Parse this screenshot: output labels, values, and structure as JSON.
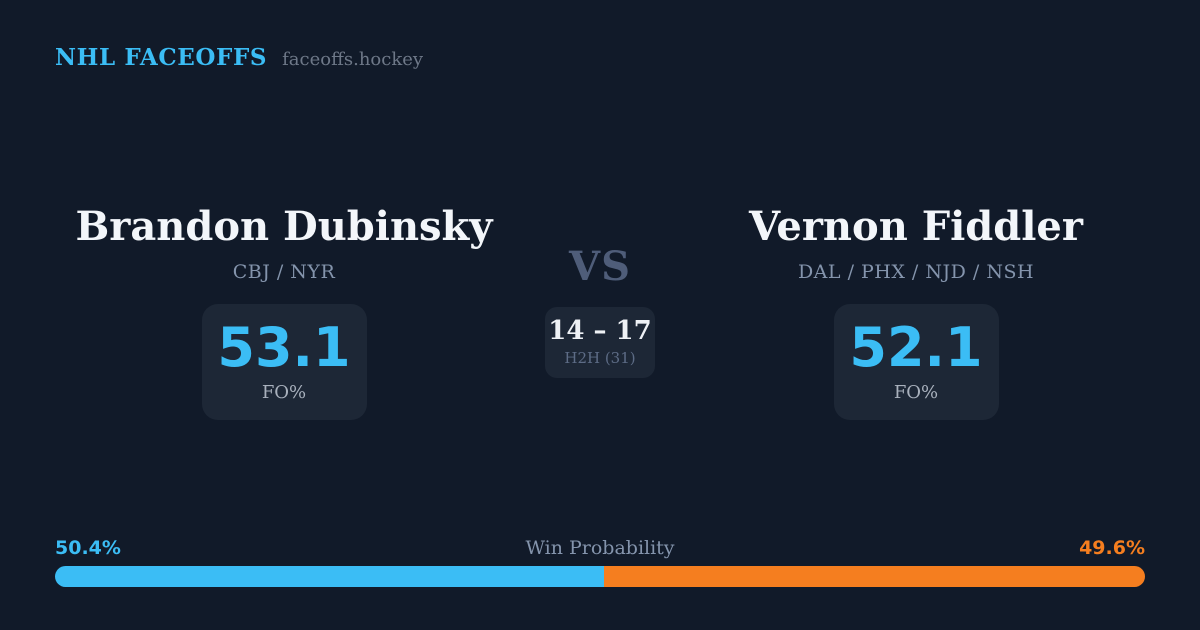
{
  "header": {
    "brand": "NHL FACEOFFS",
    "domain": "faceoffs.hockey"
  },
  "matchup": {
    "vs_label": "VS",
    "h2h": {
      "record": "14 – 17",
      "label": "H2H (31)"
    },
    "players": {
      "0": {
        "name": "Brandon Dubinsky",
        "teams": "CBJ / NYR",
        "fo_pct": "53.1",
        "stat_label": "FO%"
      },
      "1": {
        "name": "Vernon Fiddler",
        "teams": "DAL / PHX / NJD / NSH",
        "fo_pct": "52.1",
        "stat_label": "FO%"
      }
    }
  },
  "win_probability": {
    "title": "Win Probability",
    "left_label": "50.4%",
    "right_label": "49.6%",
    "left_value": 50.4,
    "right_value": 49.6
  },
  "colors": {
    "background": "#111a29",
    "panel": "#1d2736",
    "accent_blue": "#3bbdf5",
    "accent_orange": "#f57e1f",
    "text_primary": "#f3f6fa",
    "text_muted": "#8494ac"
  }
}
